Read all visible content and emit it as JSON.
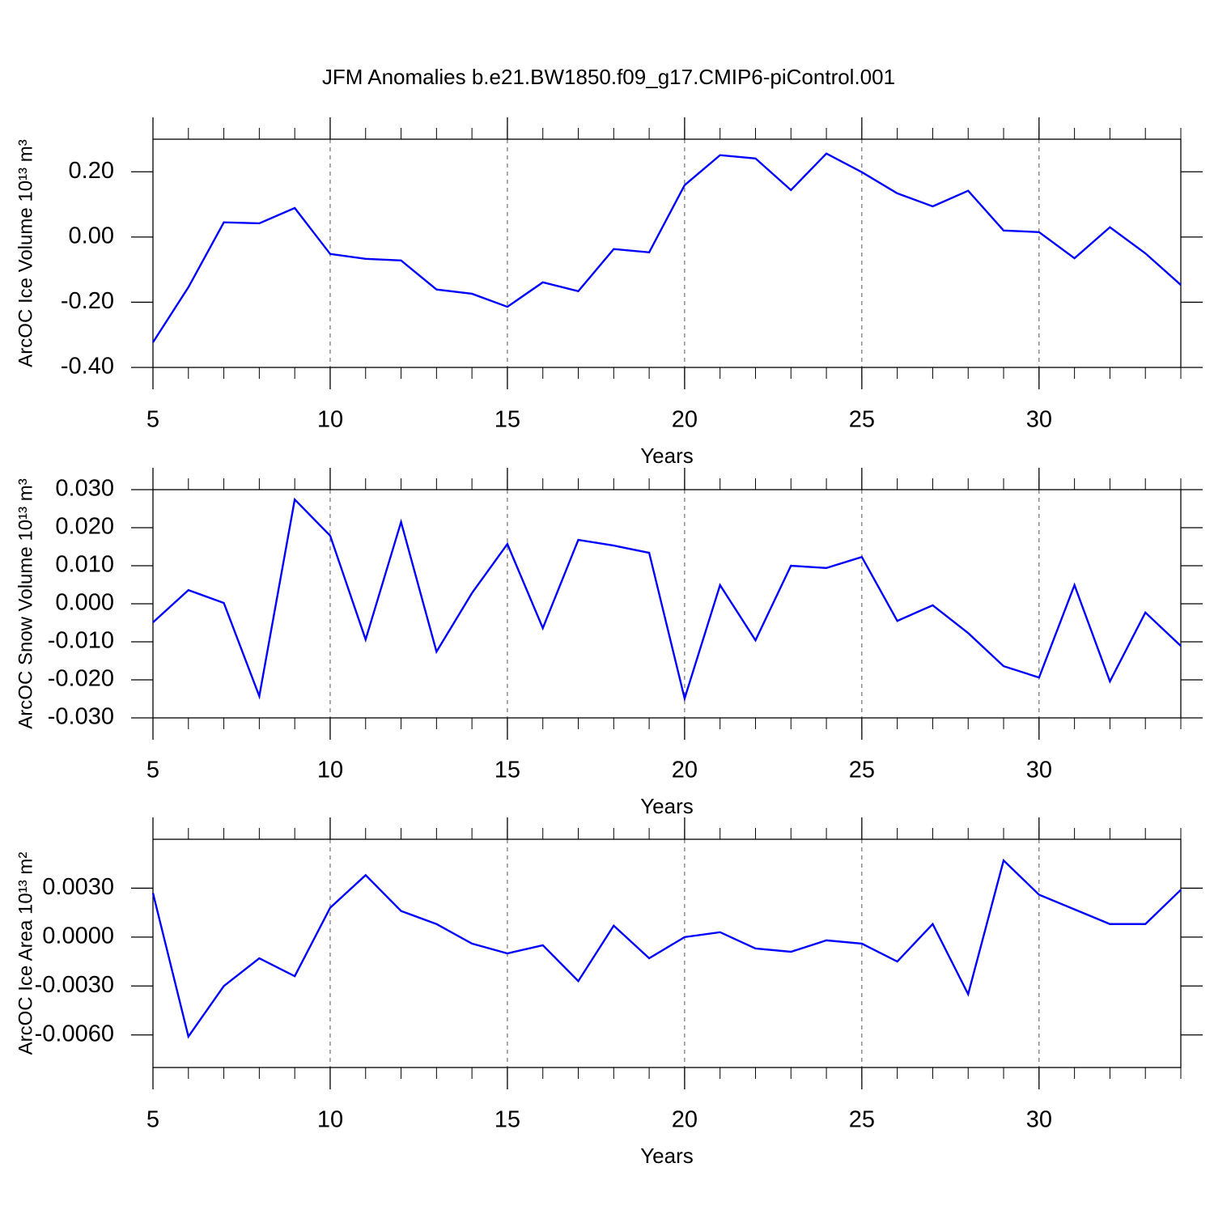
{
  "chart_data": [
    {
      "type": "line",
      "title": "JFM Anomalies b.e21.BW1850.f09_g17.CMIP6-piControl.001",
      "xlabel": "Years",
      "ylabel": "ArcOC Ice Volume 10¹³ m³",
      "x": [
        5,
        6,
        7,
        8,
        9,
        10,
        11,
        12,
        13,
        14,
        15,
        16,
        17,
        18,
        19,
        20,
        21,
        22,
        23,
        24,
        25,
        26,
        27,
        28,
        29,
        30,
        31,
        32,
        33,
        34
      ],
      "values": [
        -0.323,
        -0.154,
        0.045,
        0.042,
        0.089,
        -0.052,
        -0.067,
        -0.072,
        -0.161,
        -0.174,
        -0.214,
        -0.139,
        -0.166,
        -0.037,
        -0.047,
        0.159,
        0.251,
        0.241,
        0.144,
        0.256,
        0.199,
        0.134,
        0.094,
        0.142,
        0.02,
        0.015,
        -0.065,
        0.03,
        -0.05,
        -0.147
      ],
      "color": "#0000ff",
      "xlim": [
        5,
        34
      ],
      "xticks": [
        5,
        10,
        15,
        20,
        25,
        30
      ],
      "ylim": [
        -0.4,
        0.3
      ],
      "yticks": [
        {
          "value": -0.4,
          "label": "-0.40"
        },
        {
          "value": -0.2,
          "label": "-0.20"
        },
        {
          "value": 0,
          "label": "0.00"
        },
        {
          "value": 0.2,
          "label": "0.20"
        }
      ],
      "grid": true
    },
    {
      "type": "line",
      "xlabel": "Years",
      "ylabel": "ArcOC Snow Volume 10¹³ m³",
      "x": [
        5,
        6,
        7,
        8,
        9,
        10,
        11,
        12,
        13,
        14,
        15,
        16,
        17,
        18,
        19,
        20,
        21,
        22,
        23,
        24,
        25,
        26,
        27,
        28,
        29,
        30,
        31,
        32,
        33,
        34
      ],
      "values": [
        -0.0049,
        0.0036,
        0.0002,
        -0.0243,
        0.0274,
        0.0179,
        -0.0094,
        0.0215,
        -0.0126,
        0.0028,
        0.0157,
        -0.0064,
        0.0168,
        0.0153,
        0.0134,
        -0.0249,
        0.0049,
        -0.0096,
        0.01,
        0.0094,
        0.0123,
        -0.0045,
        -0.0004,
        -0.0077,
        -0.0164,
        -0.0194,
        0.0049,
        -0.0204,
        -0.0023,
        -0.0111
      ],
      "color": "#0000ff",
      "xlim": [
        5,
        34
      ],
      "xticks": [
        5,
        10,
        15,
        20,
        25,
        30
      ],
      "ylim": [
        -0.03,
        0.03
      ],
      "yticks": [
        {
          "value": -0.03,
          "label": "-0.030"
        },
        {
          "value": -0.02,
          "label": "-0.020"
        },
        {
          "value": -0.01,
          "label": "-0.010"
        },
        {
          "value": 0,
          "label": "0.000"
        },
        {
          "value": 0.01,
          "label": "0.010"
        },
        {
          "value": 0.02,
          "label": "0.020"
        },
        {
          "value": 0.03,
          "label": "0.030"
        }
      ],
      "grid": true
    },
    {
      "type": "line",
      "xlabel": "Years",
      "ylabel": "ArcOC Ice Area 10¹³ m²",
      "x": [
        5,
        6,
        7,
        8,
        9,
        10,
        11,
        12,
        13,
        14,
        15,
        16,
        17,
        18,
        19,
        20,
        21,
        22,
        23,
        24,
        25,
        26,
        27,
        28,
        29,
        30,
        31,
        32,
        33,
        34
      ],
      "values": [
        0.0027,
        -0.0061,
        -0.003,
        -0.0013,
        -0.0024,
        0.0018,
        0.0038,
        0.0016,
        0.0008,
        -0.0004,
        -0.001,
        -0.0005,
        -0.0027,
        0.0007,
        -0.0013,
        0.0,
        0.0003,
        -0.0007,
        -0.0009,
        -0.0002,
        -0.0004,
        -0.0015,
        0.0008,
        -0.0035,
        0.0047,
        0.0026,
        0.0017,
        0.0008,
        0.0008,
        0.0029
      ],
      "color": "#0000ff",
      "xlim": [
        5,
        34
      ],
      "xticks": [
        5,
        10,
        15,
        20,
        25,
        30
      ],
      "ylim": [
        -0.008,
        0.006
      ],
      "yticks": [
        {
          "value": -0.006,
          "label": "-0.0060"
        },
        {
          "value": -0.003,
          "label": "-0.0030"
        },
        {
          "value": 0,
          "label": "0.0000"
        },
        {
          "value": 0.003,
          "label": "0.0030"
        }
      ],
      "grid": true
    }
  ]
}
